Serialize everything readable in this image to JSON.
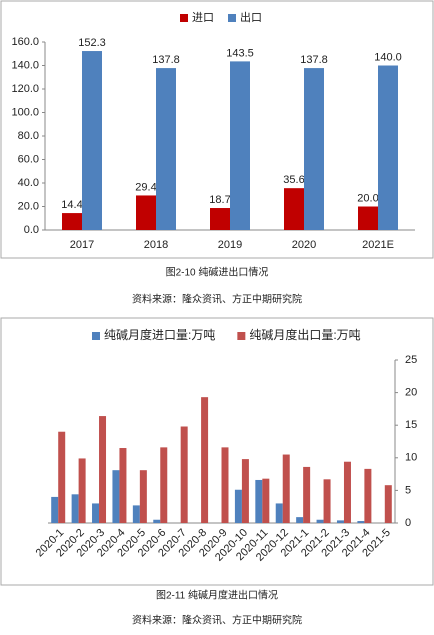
{
  "chart_data": [
    {
      "type": "bar",
      "categories": [
        "2017",
        "2018",
        "2019",
        "2020",
        "2021E"
      ],
      "series": [
        {
          "name": "进口",
          "color": "#c00000",
          "values": [
            14.4,
            29.4,
            18.7,
            35.6,
            20.0
          ],
          "value_labels": [
            "14.4",
            "29.4",
            "18.7",
            "35.6",
            "20.0"
          ]
        },
        {
          "name": "出口",
          "color": "#4f81bd",
          "values": [
            152.3,
            137.8,
            143.5,
            137.8,
            140.0
          ],
          "value_labels": [
            "152.3",
            "137.8",
            "143.5",
            "137.8",
            "140.0"
          ]
        }
      ],
      "ylim": [
        0,
        160
      ],
      "yticks": [
        {
          "value": 0,
          "label": "0.0"
        },
        {
          "value": 20,
          "label": "20.0"
        },
        {
          "value": 40,
          "label": "40.0"
        },
        {
          "value": 60,
          "label": "60.0"
        },
        {
          "value": 80,
          "label": "80.0"
        },
        {
          "value": 100,
          "label": "100.0"
        },
        {
          "value": 120,
          "label": "120.0"
        },
        {
          "value": 140,
          "label": "140.0"
        },
        {
          "value": 160,
          "label": "160.0"
        }
      ],
      "legend": "top"
    },
    {
      "type": "bar",
      "categories": [
        "2020-1",
        "2020-2",
        "2020-3",
        "2020-4",
        "2020-5",
        "2020-6",
        "2020-7",
        "2020-8",
        "2020-9",
        "2020-10",
        "2020-11",
        "2020-12",
        "2021-1",
        "2021-2",
        "2021-3",
        "2021-4",
        "2021-5"
      ],
      "series": [
        {
          "name": "纯碱月度进口量:万吨",
          "color": "#4f81bd",
          "axis": "y2",
          "values": [
            4.0,
            4.4,
            3.0,
            8.1,
            2.7,
            0.5,
            0,
            0,
            0,
            5.1,
            6.6,
            3.0,
            0.9,
            0.5,
            0.4,
            0.3,
            0
          ]
        },
        {
          "name": "纯碱月度出口量:万吨",
          "color": "#c0504d",
          "axis": "y2",
          "values": [
            14.0,
            9.9,
            16.4,
            11.5,
            8.1,
            11.6,
            14.8,
            19.3,
            11.6,
            9.8,
            6.8,
            10.5,
            8.6,
            6.7,
            9.4,
            8.3,
            5.8
          ]
        }
      ],
      "y2lim": [
        0,
        25
      ],
      "y2ticks": [
        0,
        5,
        10,
        15,
        20,
        25
      ],
      "legend": "top"
    }
  ],
  "captions": [
    "图2-10 纯碱进出口情况",
    "图2-11 纯碱月度进出口情况"
  ],
  "sources": [
    "资料来源：隆众资讯、方正中期研究院",
    "资料来源：隆众资讯、方正中期研究院"
  ]
}
